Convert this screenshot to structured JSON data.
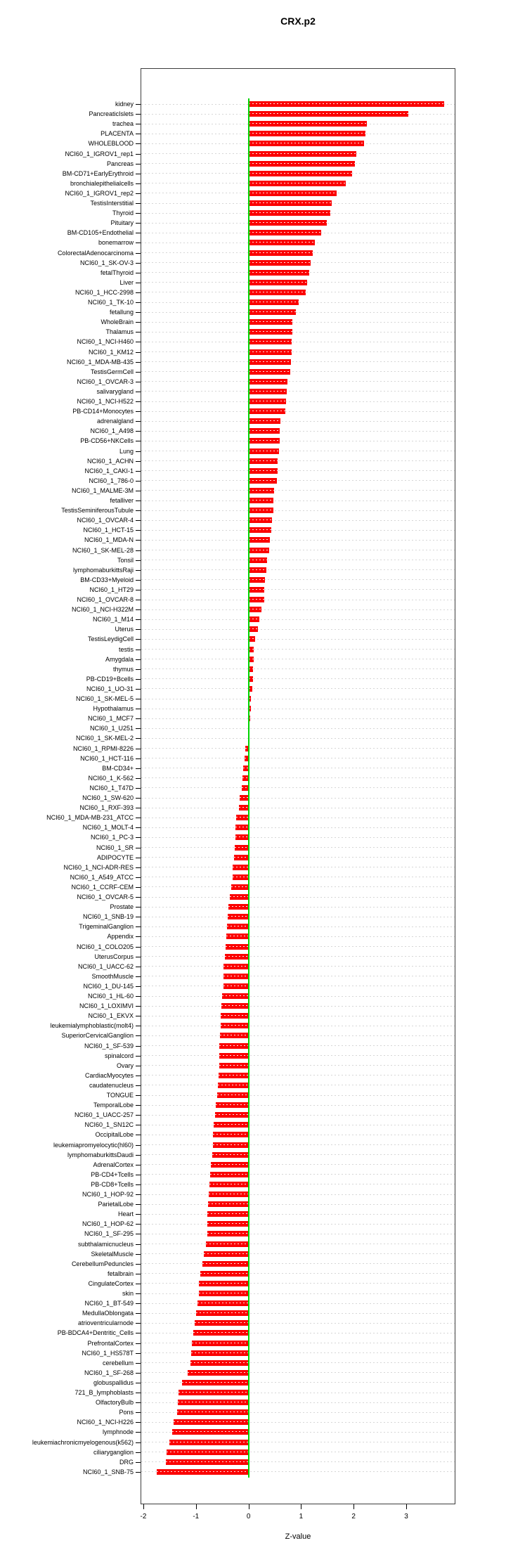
{
  "page": {
    "title": "CRX.p2"
  },
  "chart_data": {
    "type": "bar",
    "orientation": "horizontal",
    "title": "CRX.p2",
    "xlabel": "Z-value",
    "xlim": [
      -2.05,
      3.94
    ],
    "xticks": [
      -2,
      -1,
      0,
      1,
      2,
      3
    ],
    "grid": "dotted-per-category",
    "legend": "none",
    "bar_color": "#fb0000",
    "zero_line_color": "#00d400",
    "grid_color": "#d6d6d6",
    "categories": [
      "kidney",
      "PancreaticIslets",
      "trachea",
      "PLACENTA",
      "WHOLEBLOOD",
      "NCI60_1_IGROV1_rep1",
      "Pancreas",
      "BM-CD71+EarlyErythroid",
      "bronchialepithelialcells",
      "NCI60_1_IGROV1_rep2",
      "TestisInterstitial",
      "Thyroid",
      "Pituitary",
      "BM-CD105+Endothelial",
      "bonemarrow",
      "ColorectalAdenocarcinoma",
      "NCI60_1_SK-OV-3",
      "fetalThyroid",
      "Liver",
      "NCI60_1_HCC-2998",
      "NCI60_1_TK-10",
      "fetallung",
      "WholeBrain",
      "Thalamus",
      "NCI60_1_NCI-H460",
      "NCI60_1_KM12",
      "NCI60_1_MDA-MB-435",
      "TestisGermCell",
      "NCI60_1_OVCAR-3",
      "salivarygland",
      "NCI60_1_NCI-H522",
      "PB-CD14+Monocytes",
      "adrenalgland",
      "NCI60_1_A498",
      "PB-CD56+NKCells",
      "Lung",
      "NCI60_1_ACHN",
      "NCI60_1_CAKI-1",
      "NCI60_1_786-0",
      "NCI60_1_MALME-3M",
      "fetalliver",
      "TestisSeminiferousTubule",
      "NCI60_1_OVCAR-4",
      "NCI60_1_HCT-15",
      "NCI60_1_MDA-N",
      "NCI60_1_SK-MEL-28",
      "Tonsil",
      "lymphomaburkittsRaji",
      "BM-CD33+Myeloid",
      "NCI60_1_HT29",
      "NCI60_1_OVCAR-8",
      "NCI60_1_NCI-H322M",
      "NCI60_1_M14",
      "Uterus",
      "TestisLeydigCell",
      "testis",
      "Amygdala",
      "thymus",
      "PB-CD19+Bcells",
      "NCI60_1_UO-31",
      "NCI60_1_SK-MEL-5",
      "Hypothalamus",
      "NCI60_1_MCF7",
      "NCI60_1_U251",
      "NCI60_1_SK-MEL-2",
      "NCI60_1_RPMI-8226",
      "NCI60_1_HCT-116",
      "BM-CD34+",
      "NCI60_1_K-562",
      "NCI60_1_T47D",
      "NCI60_1_SW-620",
      "NCI60_1_RXF-393",
      "NCI60_1_MDA-MB-231_ATCC",
      "NCI60_1_MOLT-4",
      "NCI60_1_PC-3",
      "NCI60_1_SR",
      "ADIPOCYTE",
      "NCI60_1_NCI-ADR-RES",
      "NCI60_1_A549_ATCC",
      "NCI60_1_CCRF-CEM",
      "NCI60_1_OVCAR-5",
      "Prostate",
      "NCI60_1_SNB-19",
      "TrigeminalGanglion",
      "Appendix",
      "NCI60_1_COLO205",
      "UterusCorpus",
      "NCI60_1_UACC-62",
      "SmoothMuscle",
      "NCI60_1_DU-145",
      "NCI60_1_HL-60",
      "NCI60_1_LOXIMVI",
      "NCI60_1_EKVX",
      "leukemialymphoblastic(molt4)",
      "SuperiorCervicalGanglion",
      "NCI60_1_SF-539",
      "spinalcord",
      "Ovary",
      "CardiacMyocytes",
      "caudatenucleus",
      "TONGUE",
      "TemporalLobe",
      "NCI60_1_UACC-257",
      "NCI60_1_SN12C",
      "OccipitalLobe",
      "leukemiapromyelocytic(hl60)",
      "lymphomaburkittsDaudi",
      "AdrenalCortex",
      "PB-CD4+Tcells",
      "PB-CD8+Tcells",
      "NCI60_1_HOP-92",
      "ParietalLobe",
      "Heart",
      "NCI60_1_HOP-62",
      "NCI60_1_SF-295",
      "subthalamicnucleus",
      "SkeletalMuscle",
      "CerebellumPeduncles",
      "fetalbrain",
      "CingulateCortex",
      "skin",
      "NCI60_1_BT-549",
      "MedullaOblongata",
      "atrioventricularnode",
      "PB-BDCA4+Dentritic_Cells",
      "PrefrontalCortex",
      "NCI60_1_HS578T",
      "cerebellum",
      "NCI60_1_SF-268",
      "globuspallidus",
      "721_B_lymphoblasts",
      "OlfactoryBulb",
      "Pons",
      "NCI60_1_NCI-H226",
      "lymphnode",
      "leukemiachronicmyelogenous(k562)",
      "ciliaryganglion",
      "DRG",
      "NCI60_1_SNB-75"
    ],
    "values": [
      3.72,
      3.04,
      2.25,
      2.23,
      2.2,
      2.05,
      2.03,
      1.97,
      1.85,
      1.67,
      1.58,
      1.56,
      1.49,
      1.38,
      1.26,
      1.22,
      1.18,
      1.15,
      1.12,
      1.09,
      0.95,
      0.9,
      0.84,
      0.83,
      0.82,
      0.82,
      0.81,
      0.79,
      0.74,
      0.73,
      0.71,
      0.7,
      0.61,
      0.6,
      0.59,
      0.58,
      0.56,
      0.55,
      0.54,
      0.49,
      0.48,
      0.47,
      0.45,
      0.43,
      0.41,
      0.39,
      0.35,
      0.34,
      0.31,
      0.3,
      0.3,
      0.24,
      0.2,
      0.18,
      0.12,
      0.1,
      0.1,
      0.09,
      0.09,
      0.07,
      0.05,
      0.04,
      0.03,
      0.02,
      -0.01,
      -0.06,
      -0.07,
      -0.1,
      -0.12,
      -0.13,
      -0.17,
      -0.18,
      -0.24,
      -0.25,
      -0.25,
      -0.26,
      -0.28,
      -0.3,
      -0.3,
      -0.33,
      -0.36,
      -0.38,
      -0.39,
      -0.41,
      -0.42,
      -0.44,
      -0.45,
      -0.47,
      -0.48,
      -0.48,
      -0.5,
      -0.52,
      -0.53,
      -0.53,
      -0.54,
      -0.55,
      -0.55,
      -0.56,
      -0.57,
      -0.58,
      -0.6,
      -0.62,
      -0.63,
      -0.66,
      -0.67,
      -0.68,
      -0.69,
      -0.71,
      -0.73,
      -0.74,
      -0.76,
      -0.77,
      -0.78,
      -0.79,
      -0.79,
      -0.81,
      -0.85,
      -0.88,
      -0.92,
      -0.94,
      -0.95,
      -0.97,
      -1.0,
      -1.02,
      -1.05,
      -1.08,
      -1.09,
      -1.11,
      -1.16,
      -1.27,
      -1.33,
      -1.34,
      -1.36,
      -1.42,
      -1.45,
      -1.5,
      -1.56,
      -1.57,
      -1.74
    ]
  }
}
